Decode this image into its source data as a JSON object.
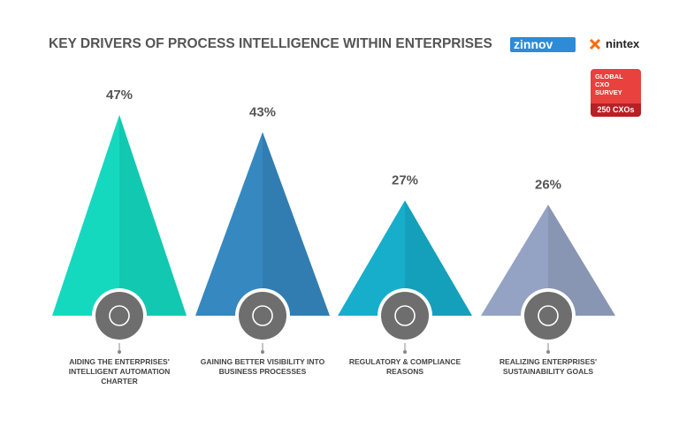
{
  "chart_data": {
    "type": "pyramid",
    "title": "KEY DRIVERS OF PROCESS INTELLIGENCE WITHIN ENTERPRISES",
    "categories": [
      "AIDING THE ENTERPRISES' INTELLIGENT AUTOMATION CHARTER",
      "GAINING BETTER VISIBILITY INTO BUSINESS PROCESSES",
      "REGULATORY & COMPLIANCE REASONS",
      "REALIZING ENTERPRISES' SUSTAINABILITY GOALS"
    ],
    "values": [
      47,
      43,
      27,
      26
    ],
    "value_labels": [
      "47%",
      "43%",
      "27%",
      "26%"
    ],
    "colors": [
      "#14d9bf",
      "#3688c0",
      "#16aecb",
      "#94a3c4"
    ]
  },
  "branding": {
    "logos": [
      "zinnov",
      "nintex"
    ],
    "badge": {
      "heading": "GLOBAL CXO SURVEY",
      "count": "250 CXOs"
    }
  }
}
